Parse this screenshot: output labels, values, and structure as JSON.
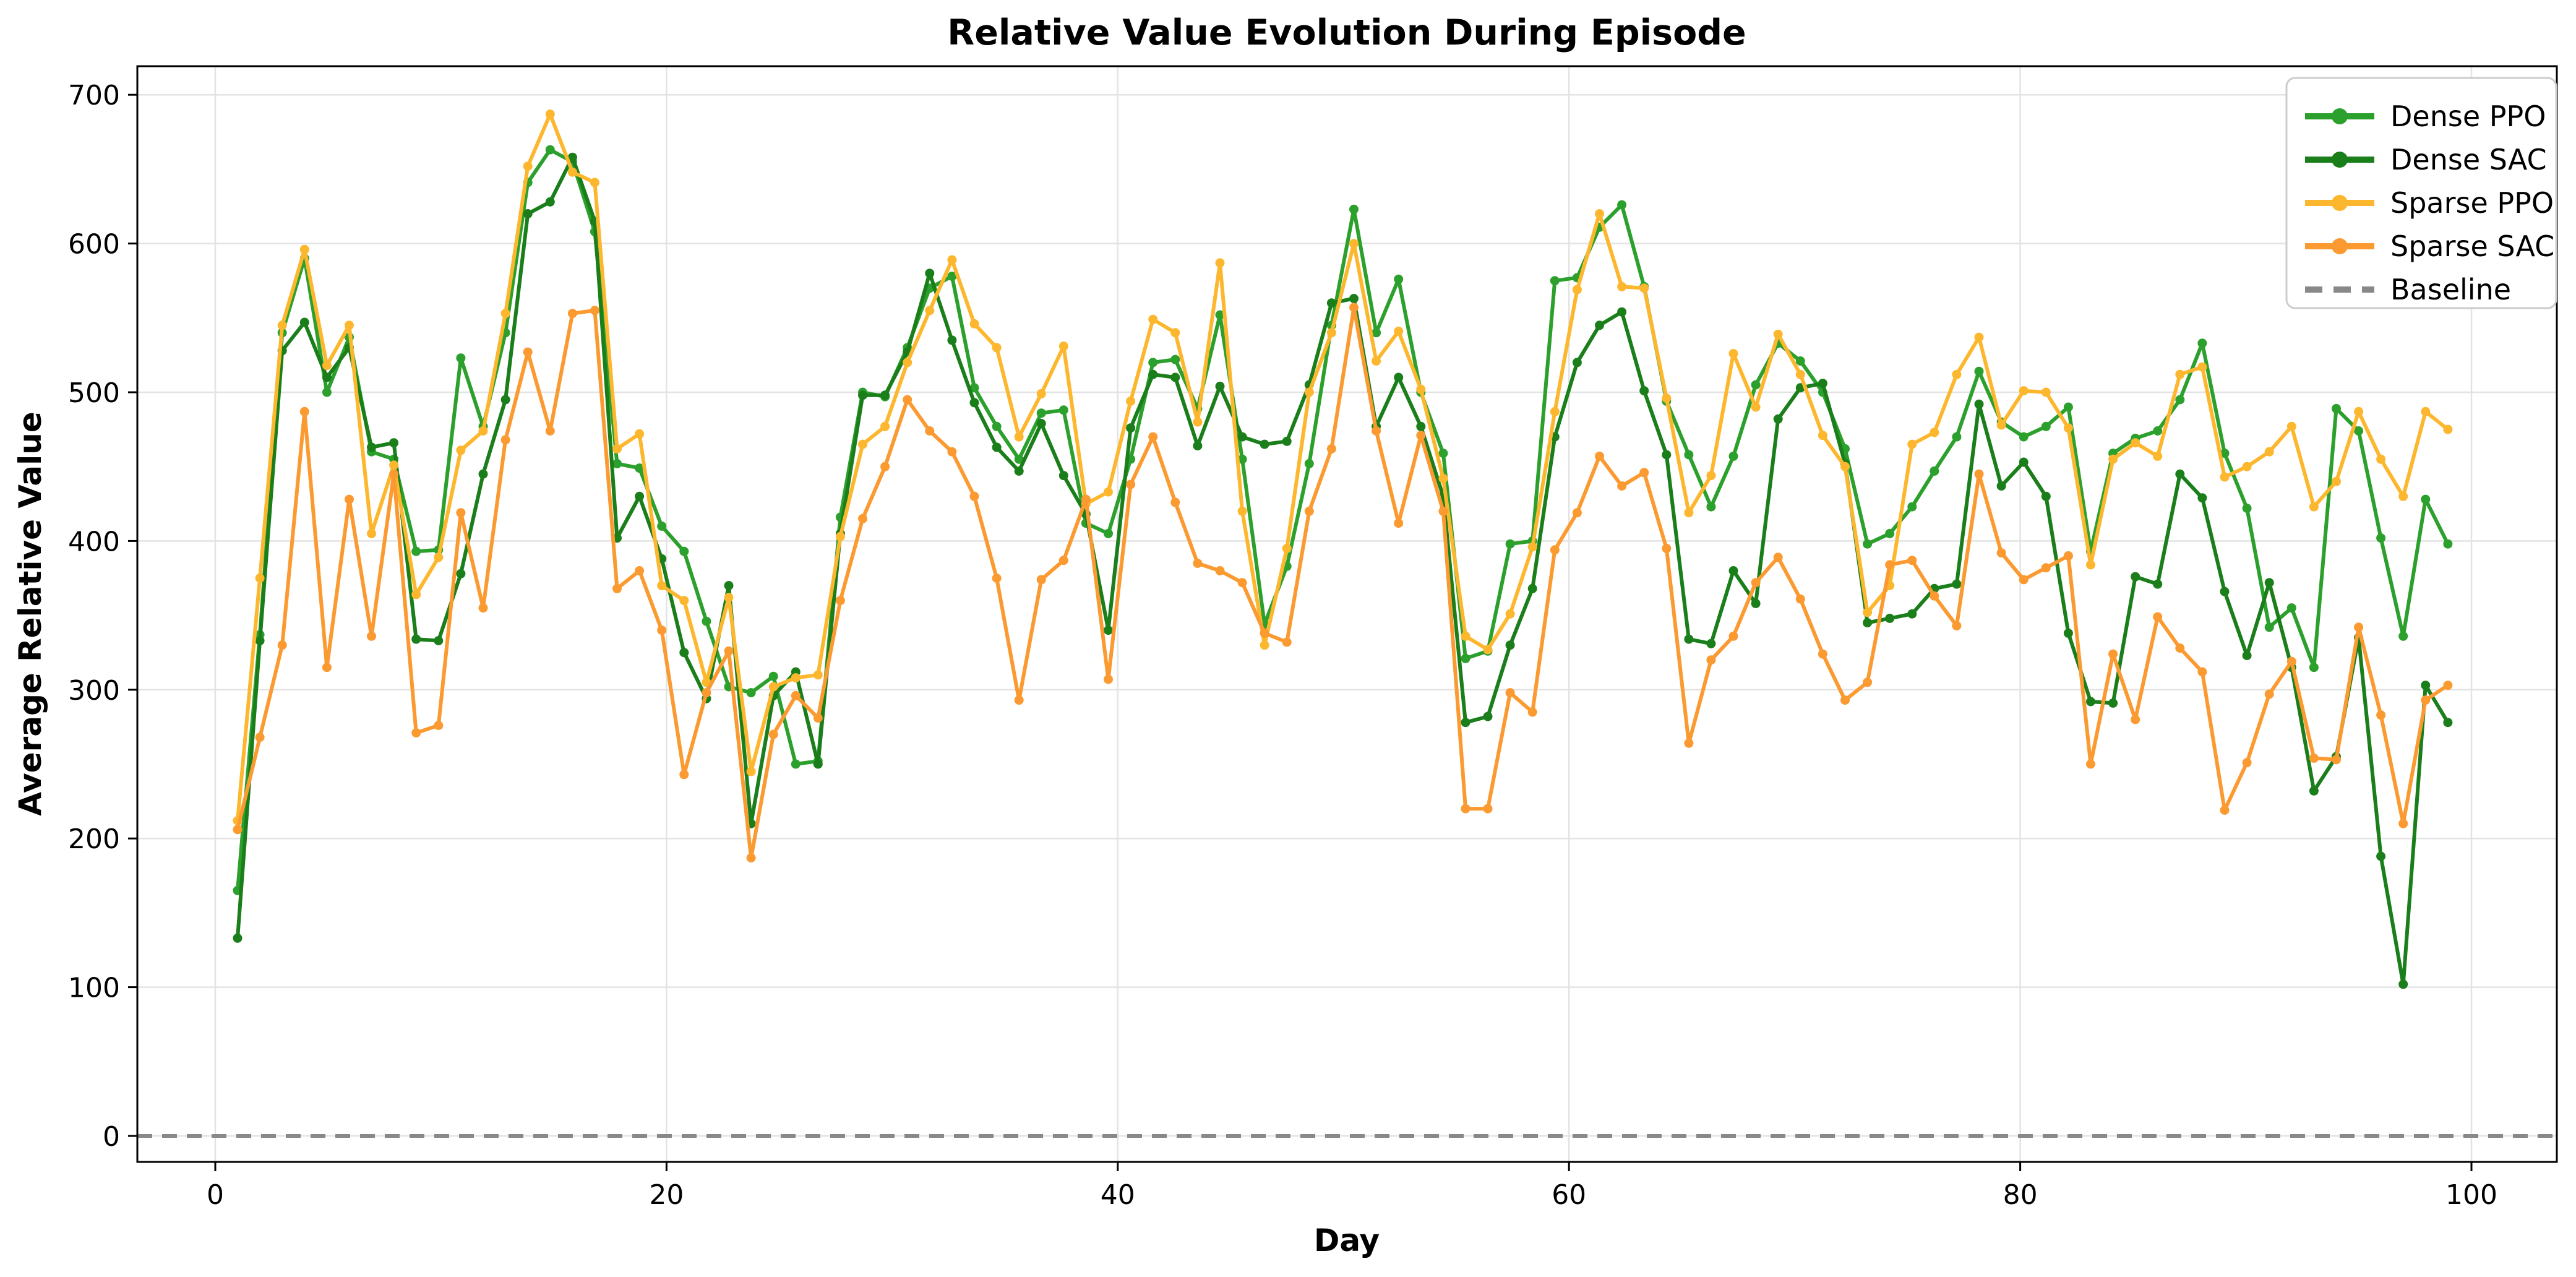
{
  "chart_data": {
    "type": "line",
    "title": "Relative Value Evolution During Episode",
    "xlabel": "Day",
    "ylabel": "Average Relative Value",
    "x_ticks": [
      0,
      20,
      40,
      60,
      80,
      100
    ],
    "y_ticks": [
      0,
      100,
      200,
      300,
      400,
      500,
      600,
      700
    ],
    "xlim": [
      -3.5,
      103.8
    ],
    "ylim": [
      -17.5,
      719
    ],
    "grid": true,
    "legend_position": "upper right",
    "days": [
      1,
      2,
      3,
      4,
      5,
      6,
      7,
      8,
      9,
      10,
      11,
      12,
      13,
      14,
      15,
      16,
      17,
      18,
      19,
      20,
      21,
      22,
      23,
      24,
      25,
      26,
      27,
      28,
      29,
      30,
      31,
      32,
      33,
      34,
      35,
      36,
      37,
      38,
      39,
      40,
      41,
      42,
      43,
      44,
      45,
      46,
      47,
      48,
      49,
      50,
      51,
      52,
      53,
      54,
      55,
      56,
      57,
      58,
      59,
      60,
      61,
      62,
      63,
      64,
      65,
      66,
      67,
      68,
      69,
      70,
      71,
      72,
      73,
      74,
      75,
      76,
      77,
      78,
      79,
      80,
      81,
      82,
      83,
      84,
      85,
      86,
      87,
      88,
      89,
      90,
      91,
      92,
      93,
      94,
      95,
      96,
      97,
      98,
      99,
      100
    ],
    "series": [
      {
        "name": "Dense PPO",
        "color": "#2ca02c",
        "values": [
          165,
          337,
          540,
          590,
          500,
          537,
          460,
          455,
          393,
          394,
          523,
          477,
          540,
          641,
          663,
          655,
          608,
          452,
          449,
          410,
          393,
          346,
          302,
          298,
          309,
          250,
          252,
          416,
          500,
          497,
          530,
          570,
          578,
          503,
          477,
          455,
          486,
          488,
          412,
          405,
          455,
          520,
          522,
          489,
          552,
          455,
          344,
          383,
          452,
          545,
          623,
          540,
          576,
          500,
          459,
          321,
          326,
          398,
          400,
          575,
          577,
          611,
          626,
          571,
          494,
          458,
          423,
          457,
          505,
          533,
          521,
          500,
          462,
          398,
          405,
          423,
          447,
          470,
          514,
          480,
          470,
          477,
          490,
          393,
          459,
          469,
          474,
          495,
          533,
          459,
          422,
          342,
          355,
          315,
          489,
          474,
          402,
          336,
          428,
          398
        ]
      },
      {
        "name": "Dense SAC",
        "color": "#1a7e1a",
        "values": [
          133,
          333,
          528,
          547,
          510,
          530,
          463,
          466,
          334,
          333,
          378,
          445,
          495,
          620,
          628,
          658,
          615,
          402,
          430,
          388,
          325,
          294,
          370,
          210,
          296,
          312,
          250,
          405,
          498,
          498,
          527,
          580,
          535,
          493,
          463,
          447,
          479,
          444,
          418,
          340,
          476,
          512,
          510,
          464,
          504,
          470,
          465,
          467,
          505,
          560,
          563,
          477,
          510,
          477,
          430,
          278,
          282,
          330,
          368,
          470,
          520,
          545,
          554,
          501,
          458,
          334,
          331,
          380,
          358,
          482,
          503,
          506,
          452,
          345,
          348,
          351,
          368,
          371,
          492,
          437,
          453,
          430,
          338,
          292,
          291,
          376,
          371,
          445,
          429,
          366,
          323,
          372,
          315,
          232,
          255,
          335,
          188,
          102,
          303,
          278
        ]
      },
      {
        "name": "Sparse PPO",
        "color": "#fdb72e",
        "values": [
          212,
          375,
          545,
          596,
          518,
          545,
          405,
          451,
          364,
          389,
          461,
          474,
          553,
          652,
          687,
          648,
          641,
          462,
          472,
          370,
          360,
          305,
          362,
          245,
          302,
          308,
          310,
          403,
          465,
          477,
          520,
          555,
          589,
          546,
          530,
          470,
          499,
          531,
          425,
          433,
          494,
          549,
          540,
          480,
          587,
          420,
          330,
          395,
          500,
          540,
          600,
          521,
          541,
          502,
          442,
          336,
          327,
          351,
          396,
          487,
          569,
          620,
          571,
          570,
          496,
          419,
          444,
          526,
          490,
          539,
          512,
          471,
          450,
          352,
          370,
          465,
          473,
          512,
          537,
          478,
          501,
          500,
          476,
          384,
          455,
          466,
          457,
          512,
          517,
          443,
          450,
          460,
          477,
          423,
          440,
          487,
          455,
          430,
          487,
          475
        ]
      },
      {
        "name": "Sparse SAC",
        "color": "#fb9a31",
        "values": [
          206,
          268,
          330,
          487,
          315,
          428,
          336,
          445,
          271,
          276,
          419,
          355,
          468,
          527,
          474,
          553,
          555,
          368,
          380,
          340,
          243,
          298,
          326,
          187,
          270,
          296,
          281,
          360,
          415,
          450,
          495,
          474,
          460,
          430,
          375,
          293,
          374,
          387,
          428,
          307,
          438,
          470,
          426,
          385,
          380,
          372,
          338,
          332,
          420,
          462,
          557,
          474,
          412,
          471,
          420,
          220,
          220,
          298,
          285,
          394,
          419,
          457,
          437,
          446,
          395,
          264,
          320,
          336,
          372,
          389,
          361,
          324,
          293,
          305,
          384,
          387,
          363,
          343,
          445,
          392,
          374,
          382,
          390,
          250,
          324,
          280,
          349,
          328,
          312,
          219,
          251,
          297,
          319,
          254,
          253,
          342,
          283,
          210,
          293,
          303
        ]
      }
    ],
    "baseline": {
      "name": "Baseline",
      "value": 0,
      "color": "#888888",
      "dashed": true
    }
  }
}
